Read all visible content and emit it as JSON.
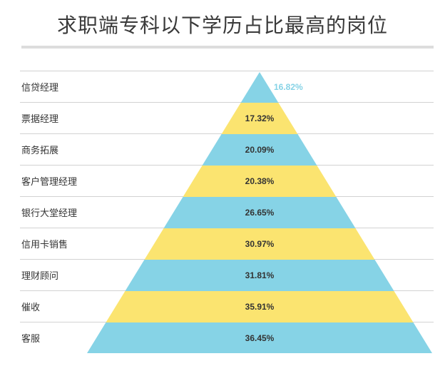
{
  "chart_data": {
    "type": "bar",
    "title": "求职端专科以下学历占比最高的岗位",
    "categories": [
      "信贷经理",
      "票据经理",
      "商务拓展",
      "客户管理经理",
      "银行大堂经理",
      "信用卡销售",
      "理财顾问",
      "催收",
      "客服"
    ],
    "values": [
      16.82,
      17.32,
      20.09,
      20.38,
      26.65,
      30.97,
      31.81,
      35.91,
      36.45
    ],
    "value_labels": [
      "16.82%",
      "17.32%",
      "20.09%",
      "20.38%",
      "26.65%",
      "30.97%",
      "31.81%",
      "35.91%",
      "36.45%"
    ],
    "colors": {
      "blue": "#86d3e6",
      "yellow": "#fbe470"
    }
  }
}
